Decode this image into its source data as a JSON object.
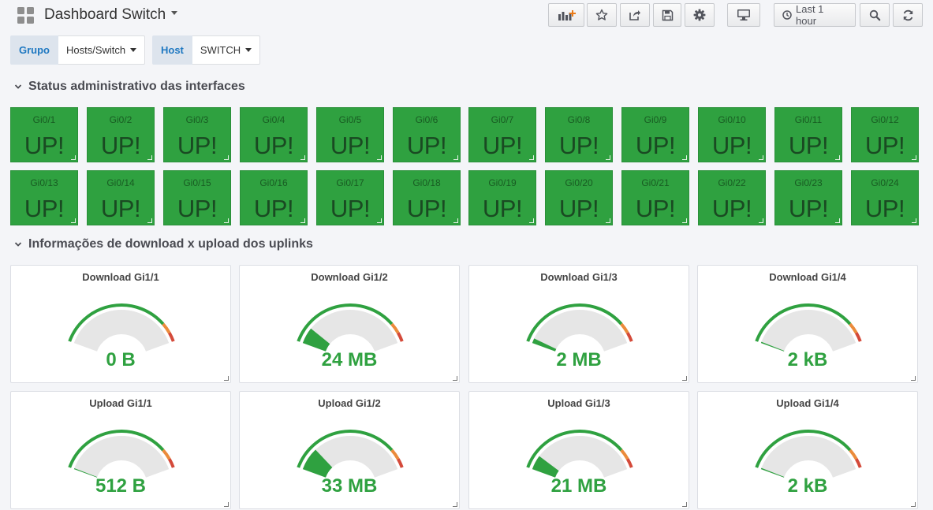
{
  "header": {
    "title": "Dashboard Switch",
    "time_range": "Last 1 hour"
  },
  "variables": [
    {
      "label": "Grupo",
      "value": "Hosts/Switch"
    },
    {
      "label": "Host",
      "value": "SWITCH"
    }
  ],
  "rows": {
    "status_title": "Status administrativo das interfaces",
    "traffic_title": "Informações de download x upload dos uplinks"
  },
  "status_value": "UP!",
  "interfaces": [
    "Gi0/1",
    "Gi0/2",
    "Gi0/3",
    "Gi0/4",
    "Gi0/5",
    "Gi0/6",
    "Gi0/7",
    "Gi0/8",
    "Gi0/9",
    "Gi0/10",
    "Gi0/11",
    "Gi0/12",
    "Gi0/13",
    "Gi0/14",
    "Gi0/15",
    "Gi0/16",
    "Gi0/17",
    "Gi0/18",
    "Gi0/19",
    "Gi0/20",
    "Gi0/21",
    "Gi0/22",
    "Gi0/23",
    "Gi0/24"
  ],
  "colors": {
    "ok": "#2fa140",
    "warn": "#eb8b3b",
    "crit": "#d44a3a",
    "gauge_bg": "#e6e6e6"
  },
  "gauges": [
    {
      "title": "Download Gi1/1",
      "value": "0 B",
      "fill_fraction": 0.0
    },
    {
      "title": "Download Gi1/2",
      "value": "24 MB",
      "fill_fraction": 0.135
    },
    {
      "title": "Download Gi1/3",
      "value": "2 MB",
      "fill_fraction": 0.04
    },
    {
      "title": "Download Gi1/4",
      "value": "2 kB",
      "fill_fraction": 0.01
    },
    {
      "title": "Upload Gi1/1",
      "value": "512 B",
      "fill_fraction": 0.008
    },
    {
      "title": "Upload Gi1/2",
      "value": "33 MB",
      "fill_fraction": 0.19
    },
    {
      "title": "Upload Gi1/3",
      "value": "21 MB",
      "fill_fraction": 0.12
    },
    {
      "title": "Upload Gi1/4",
      "value": "2 kB",
      "fill_fraction": 0.01
    }
  ]
}
